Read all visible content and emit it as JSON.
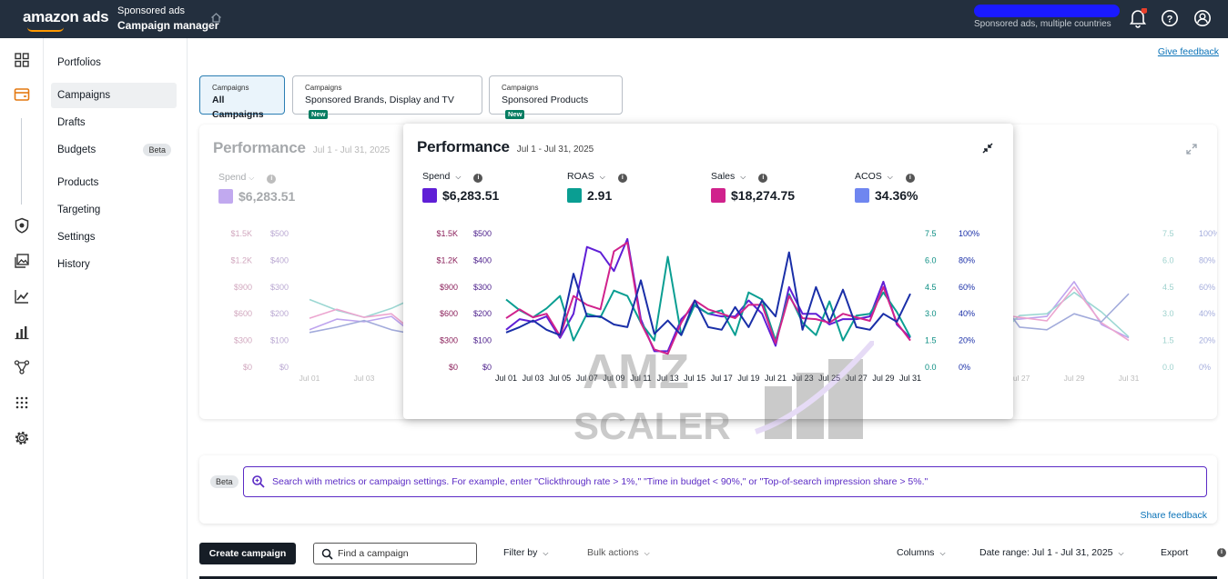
{
  "topbar": {
    "logo": "amazon ads",
    "product_line1": "Sponsored ads",
    "product_line2": "Campaign manager",
    "account_sub": "Sponsored ads, multiple countries",
    "icons": [
      "home-icon",
      "bell-icon",
      "help-icon",
      "account-icon"
    ]
  },
  "rail": {
    "icons": [
      "dashboard-icon",
      "campaigns-icon",
      "shield-icon",
      "media-icon",
      "trend-icon",
      "bar-chart-icon",
      "network-icon",
      "apps-grid-icon",
      "gear-icon"
    ]
  },
  "nav": {
    "items": [
      {
        "label": "Portfolios"
      },
      {
        "label": "Campaigns"
      },
      {
        "label": "Drafts"
      },
      {
        "label": "Budgets",
        "badge": "Beta"
      },
      {
        "label": "Products"
      },
      {
        "label": "Targeting"
      },
      {
        "label": "Settings"
      },
      {
        "label": "History"
      }
    ]
  },
  "main": {
    "give_feedback": "Give feedback",
    "tabs": [
      {
        "small": "Campaigns",
        "label": "All Campaigns"
      },
      {
        "small": "Campaigns",
        "label": "Sponsored Brands, Display and TV",
        "badge": "New"
      },
      {
        "small": "Campaigns",
        "label": "Sponsored Products",
        "badge": "New"
      }
    ],
    "search": {
      "beta": "Beta",
      "placeholder": "Search with metrics or campaign settings. For example, enter \"Clickthrough rate > 1%,\" \"Time in budget < 90%,\" or \"Top-of-search impression share > 5%.\"",
      "share_feedback": "Share feedback"
    },
    "toolbar": {
      "create": "Create campaign",
      "find_placeholder": "Find a campaign",
      "filter": "Filter by",
      "bulk": "Bulk actions",
      "columns": "Columns",
      "date_range": "Date range: Jul 1 - Jul 31, 2025",
      "export": "Export"
    }
  },
  "performance": {
    "title": "Performance",
    "date": "Jul 1 - Jul 31, 2025",
    "metrics": [
      {
        "label": "Spend",
        "value": "$6,283.51",
        "color": "#5f1fd6"
      },
      {
        "label": "ROAS",
        "value": "2.91",
        "color": "#0a9e92"
      },
      {
        "label": "Sales",
        "value": "$18,274.75",
        "color": "#d0228c"
      },
      {
        "label": "ACOS",
        "value": "34.36%",
        "color": "#6f86f0"
      }
    ]
  },
  "chart_data": {
    "type": "line",
    "x": [
      "Jul 01",
      "Jul 02",
      "Jul 03",
      "Jul 04",
      "Jul 05",
      "Jul 06",
      "Jul 07",
      "Jul 08",
      "Jul 09",
      "Jul 10",
      "Jul 11",
      "Jul 12",
      "Jul 13",
      "Jul 14",
      "Jul 15",
      "Jul 16",
      "Jul 17",
      "Jul 18",
      "Jul 19",
      "Jul 20",
      "Jul 21",
      "Jul 22",
      "Jul 23",
      "Jul 24",
      "Jul 25",
      "Jul 26",
      "Jul 27",
      "Jul 28",
      "Jul 29",
      "Jul 30",
      "Jul 31"
    ],
    "x_tick_labels": [
      "Jul 01",
      "Jul 03",
      "Jul 05",
      "Jul 07",
      "Jul 09",
      "Jul 11",
      "Jul 13",
      "Jul 15",
      "Jul 17",
      "Jul 19",
      "Jul 21",
      "Jul 23",
      "Jul 25",
      "Jul 27",
      "Jul 29",
      "Jul 31"
    ],
    "axes": [
      {
        "id": "sales",
        "ticks": [
          "$0",
          "$300",
          "$600",
          "$900",
          "$1.2K",
          "$1.5K"
        ],
        "range": [
          0,
          1500
        ],
        "color": "#8a1f5a"
      },
      {
        "id": "spend",
        "ticks": [
          "$0",
          "$100",
          "$200",
          "$300",
          "$400",
          "$500"
        ],
        "range": [
          0,
          500
        ],
        "color": "#4a1c8a"
      },
      {
        "id": "roas",
        "ticks": [
          "0.0",
          "1.5",
          "3.0",
          "4.5",
          "6.0",
          "7.5"
        ],
        "range": [
          0,
          7.5
        ],
        "color": "#0a8d82"
      },
      {
        "id": "acos",
        "ticks": [
          "0%",
          "20%",
          "40%",
          "60%",
          "80%",
          "100%"
        ],
        "range": [
          0,
          100
        ],
        "color": "#1a2fa8"
      }
    ],
    "series": [
      {
        "name": "Spend",
        "axis": "spend",
        "color": "#5f1fd6",
        "values": [
          140,
          180,
          170,
          190,
          110,
          200,
          450,
          430,
          360,
          480,
          180,
          60,
          60,
          180,
          230,
          200,
          190,
          190,
          250,
          200,
          80,
          300,
          200,
          200,
          160,
          180,
          180,
          190,
          320,
          160,
          110
        ]
      },
      {
        "name": "ROAS",
        "axis": "roas",
        "color": "#0a9e92",
        "values": [
          3.8,
          3.2,
          2.8,
          3.3,
          4.0,
          1.5,
          3.0,
          2.8,
          4.3,
          4.0,
          2.5,
          1.5,
          6.2,
          1.8,
          3.5,
          3.0,
          3.2,
          1.8,
          4.2,
          3.8,
          1.5,
          4.1,
          2.5,
          1.8,
          3.7,
          1.5,
          2.9,
          3.0,
          4.2,
          3.1,
          1.7
        ]
      },
      {
        "name": "Sales",
        "axis": "sales",
        "color": "#d0228c",
        "values": [
          550,
          650,
          560,
          600,
          350,
          800,
          700,
          650,
          1300,
          1400,
          500,
          200,
          150,
          500,
          750,
          650,
          600,
          550,
          700,
          700,
          270,
          800,
          550,
          540,
          500,
          600,
          560,
          520,
          900,
          500,
          300
        ]
      },
      {
        "name": "ACOS",
        "axis": "acos",
        "color": "#1a2fa8",
        "values": [
          26,
          30,
          35,
          28,
          24,
          70,
          38,
          38,
          32,
          30,
          65,
          25,
          35,
          24,
          50,
          30,
          28,
          45,
          30,
          50,
          38,
          86,
          28,
          60,
          34,
          58,
          30,
          28,
          40,
          34,
          55
        ]
      }
    ]
  },
  "watermark": {
    "line1": "AMZ",
    "line2": "SCALER"
  }
}
